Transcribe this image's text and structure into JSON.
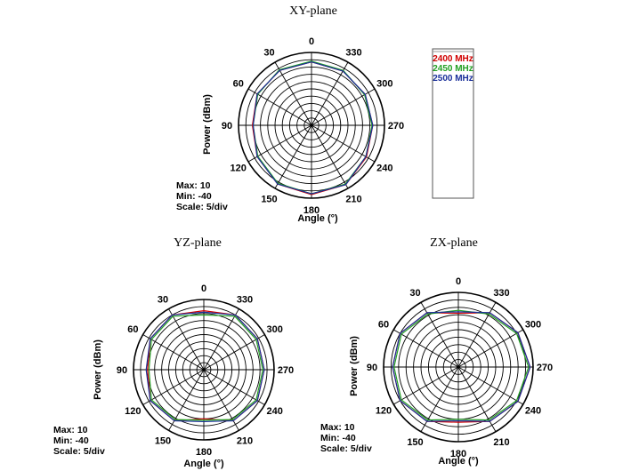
{
  "legend": {
    "items": [
      {
        "label": "2400 MHz",
        "color": "#d00000"
      },
      {
        "label": "2450 MHz",
        "color": "#22a022"
      },
      {
        "label": "2500 MHz",
        "color": "#1a2f9a"
      }
    ]
  },
  "chart_data": [
    {
      "type": "polar-line",
      "title": "XY-plane",
      "xlabel": "Angle  (°)",
      "ylabel": "Power  (dBm)",
      "angle_ticks": [
        "0",
        "330",
        "300",
        "270",
        "240",
        "210",
        "180",
        "150",
        "120",
        "90",
        "60",
        "30"
      ],
      "rlim": [
        -40,
        10
      ],
      "r_scale_per_div": 5,
      "grid": true,
      "info": {
        "max": "Max: 10",
        "min": "Min: -40",
        "scale": "Scale: 5/div"
      },
      "angles_deg": [
        0,
        30,
        60,
        90,
        120,
        150,
        180,
        210,
        240,
        270,
        300,
        330
      ],
      "series": [
        {
          "name": "2400 MHz",
          "values": [
            3.5,
            3.5,
            3,
            0.5,
            3,
            6.5,
            7.5,
            7,
            3.5,
            2,
            2.5,
            3
          ]
        },
        {
          "name": "2450 MHz",
          "values": [
            4,
            4,
            2.5,
            0,
            2.5,
            6,
            7,
            6.5,
            3,
            1.5,
            2,
            3.5
          ]
        },
        {
          "name": "2500 MHz",
          "values": [
            3.5,
            3.5,
            3,
            0,
            3,
            6.5,
            7,
            7,
            3,
            2,
            2.5,
            3
          ]
        }
      ]
    },
    {
      "type": "polar-line",
      "title": "YZ-plane",
      "xlabel": "Angle  (°)",
      "ylabel": "Power  (dBm)",
      "angle_ticks": [
        "0",
        "330",
        "300",
        "270",
        "240",
        "210",
        "180",
        "150",
        "120",
        "90",
        "60",
        "30"
      ],
      "rlim": [
        -40,
        10
      ],
      "r_scale_per_div": 5,
      "grid": true,
      "info": {
        "max": "Max: 10",
        "min": "Min: -40",
        "scale": "Scale: 5/div"
      },
      "angles_deg": [
        0,
        30,
        60,
        90,
        120,
        150,
        180,
        210,
        240,
        270,
        300,
        330
      ],
      "series": [
        {
          "name": "2400 MHz",
          "values": [
            2,
            5,
            4,
            0,
            4,
            2,
            -5,
            2,
            4,
            3,
            4,
            5
          ]
        },
        {
          "name": "2450 MHz",
          "values": [
            -1,
            4,
            3,
            -1,
            3,
            1,
            -4,
            1,
            3,
            2,
            3,
            4
          ]
        },
        {
          "name": "2500 MHz",
          "values": [
            1,
            5,
            4,
            1,
            4,
            2,
            -3,
            2,
            4,
            3,
            4,
            5
          ]
        }
      ]
    },
    {
      "type": "polar-line",
      "title": "ZX-plane",
      "xlabel": "Angle  (°)",
      "ylabel": "Power  (dBm)",
      "angle_ticks": [
        "0",
        "330",
        "300",
        "270",
        "240",
        "210",
        "180",
        "150",
        "120",
        "90",
        "60",
        "30"
      ],
      "rlim": [
        -40,
        10
      ],
      "r_scale_per_div": 5,
      "grid": true,
      "info": {
        "max": "Max: 10",
        "min": "Min: -40",
        "scale": "Scale: 5/div"
      },
      "angles_deg": [
        0,
        30,
        60,
        90,
        120,
        150,
        180,
        210,
        240,
        270,
        300,
        330
      ],
      "series": [
        {
          "name": "2400 MHz",
          "values": [
            -4,
            2,
            5,
            4,
            5,
            2,
            -3,
            2,
            6,
            8,
            6,
            2
          ]
        },
        {
          "name": "2450 MHz",
          "values": [
            -2,
            1,
            4,
            3,
            4,
            1,
            -5,
            1,
            5,
            7,
            5,
            1
          ]
        },
        {
          "name": "2500 MHz",
          "values": [
            -3,
            2,
            5,
            4,
            5,
            2,
            -4,
            2,
            6,
            8,
            6,
            2
          ]
        }
      ]
    }
  ]
}
